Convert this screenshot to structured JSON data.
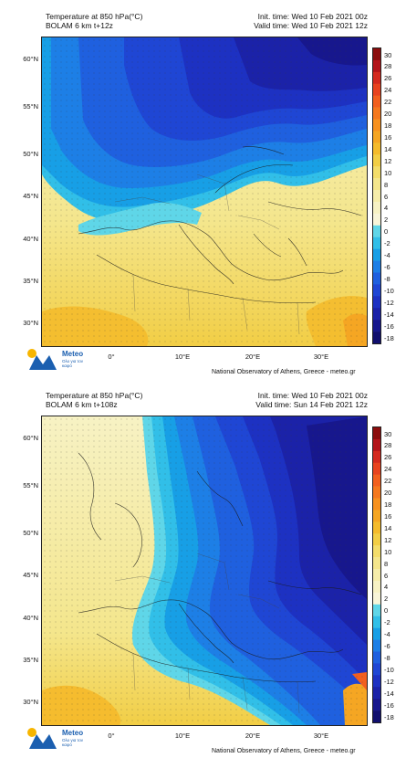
{
  "panels": [
    {
      "title": "Temperature at 850 hPa(°C)",
      "model": "BOLAM 6 km t+12z",
      "init_time": "Init. time: Wed 10 Feb 2021 00z",
      "valid_time": "Valid time: Wed 10 Feb 2021 12z"
    },
    {
      "title": "Temperature at 850 hPa(°C)",
      "model": "BOLAM 6 km t+108z",
      "init_time": "Init. time: Wed 10 Feb 2021 00z",
      "valid_time": "Valid time: Sun 14 Feb 2021 12z"
    }
  ],
  "lat_labels": [
    "60°N",
    "55°N",
    "50°N",
    "45°N",
    "40°N",
    "35°N",
    "30°N"
  ],
  "lon_labels": [
    "0°",
    "10°E",
    "20°E",
    "30°E"
  ],
  "colorbar_ticks": [
    "30",
    "28",
    "26",
    "24",
    "22",
    "20",
    "18",
    "16",
    "14",
    "12",
    "10",
    "8",
    "6",
    "4",
    "2",
    "0",
    "-2",
    "-4",
    "-6",
    "-8",
    "-10",
    "-12",
    "-14",
    "-16",
    "-18"
  ],
  "colorbar_colors": [
    "#8b0d0d",
    "#b3151a",
    "#d42a1f",
    "#e8431f",
    "#f25f1e",
    "#f5781e",
    "#f7911f",
    "#f5a623",
    "#f4bb2c",
    "#f2ce45",
    "#f3dd6a",
    "#f4e68c",
    "#f6edaa",
    "#f7f2c4",
    "#f8f5d8",
    "#5fd6e8",
    "#31bfe8",
    "#179fe6",
    "#1d7fe6",
    "#1f60df",
    "#1f46d4",
    "#1d31c2",
    "#1b22a8",
    "#17178d",
    "#110f6e"
  ],
  "logo": {
    "name": "Meteo",
    "tagline": "Ολο για τον καιρό"
  },
  "credit": "National Observatory of Athens, Greece - meteo.gr"
}
